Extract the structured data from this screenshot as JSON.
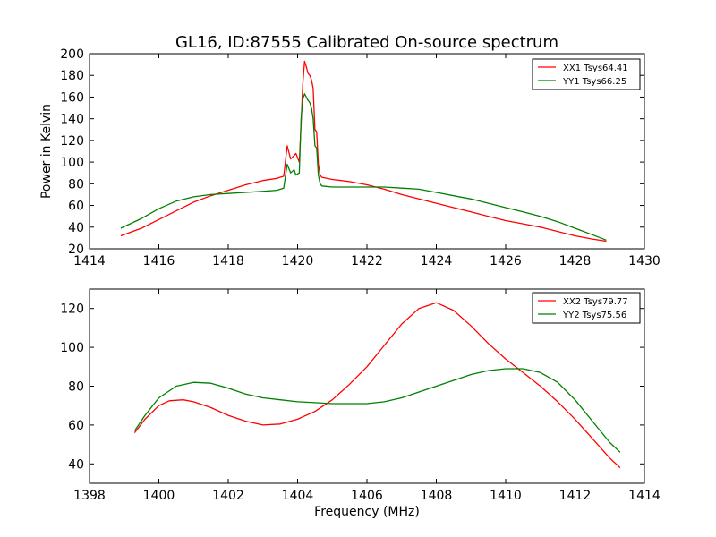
{
  "chart_data": [
    {
      "type": "line",
      "title": "GL16, ID:87555 Calibrated On-source spectrum",
      "xlabel": "",
      "ylabel": "Power in Kelvin",
      "xlim": [
        1414,
        1430
      ],
      "ylim": [
        20,
        200
      ],
      "xticks": [
        "1414",
        "1416",
        "1418",
        "1420",
        "1422",
        "1424",
        "1426",
        "1428",
        "1430"
      ],
      "yticks": [
        "20",
        "40",
        "60",
        "80",
        "100",
        "120",
        "140",
        "160",
        "180",
        "200"
      ],
      "grid": false,
      "legend": "top-right",
      "series": [
        {
          "name": "XX1 Tsys64.41",
          "color": "#ff0000",
          "x": [
            1414.9,
            1415.5,
            1416,
            1416.5,
            1417,
            1417.5,
            1418,
            1418.5,
            1419,
            1419.4,
            1419.6,
            1419.7,
            1419.8,
            1419.9,
            1419.95,
            1420.05,
            1420.1,
            1420.15,
            1420.2,
            1420.25,
            1420.3,
            1420.35,
            1420.4,
            1420.45,
            1420.5,
            1420.55,
            1420.6,
            1420.65,
            1420.7,
            1421,
            1421.5,
            1422,
            1422.5,
            1423,
            1423.5,
            1424,
            1424.5,
            1425,
            1425.5,
            1426,
            1426.5,
            1427,
            1427.5,
            1428,
            1428.5,
            1428.9
          ],
          "y": [
            32,
            39,
            47,
            55,
            63,
            69,
            74,
            79,
            83,
            85,
            87,
            115,
            103,
            106,
            108,
            100,
            135,
            172,
            193,
            188,
            182,
            180,
            176,
            168,
            130,
            128,
            98,
            88,
            86,
            84,
            82,
            79,
            75,
            70,
            66,
            62,
            58,
            54,
            50,
            46,
            43,
            40,
            36,
            32,
            29,
            27
          ]
        },
        {
          "name": "YY1 Tsys66.25",
          "color": "#008000",
          "x": [
            1414.9,
            1415.5,
            1416,
            1416.5,
            1417,
            1417.5,
            1418,
            1418.5,
            1419,
            1419.4,
            1419.6,
            1419.7,
            1419.8,
            1419.9,
            1419.95,
            1420.05,
            1420.1,
            1420.15,
            1420.2,
            1420.25,
            1420.3,
            1420.35,
            1420.4,
            1420.45,
            1420.5,
            1420.55,
            1420.6,
            1420.65,
            1420.7,
            1421,
            1421.5,
            1422,
            1422.5,
            1423,
            1423.5,
            1424,
            1424.5,
            1425,
            1425.5,
            1426,
            1426.5,
            1427,
            1427.5,
            1428,
            1428.5,
            1428.9
          ],
          "y": [
            39,
            48,
            57,
            64,
            68,
            70,
            71,
            72,
            73,
            74,
            76,
            98,
            90,
            93,
            88,
            90,
            140,
            158,
            163,
            160,
            157,
            155,
            150,
            140,
            115,
            113,
            88,
            80,
            78,
            77,
            77,
            77,
            77,
            76,
            75,
            72,
            69,
            66,
            62,
            58,
            54,
            50,
            45,
            39,
            33,
            28
          ]
        }
      ]
    },
    {
      "type": "line",
      "title": "",
      "xlabel": "Frequency (MHz)",
      "ylabel": "",
      "xlim": [
        1398,
        1414
      ],
      "ylim": [
        30,
        130
      ],
      "xticks": [
        "1398",
        "1400",
        "1402",
        "1404",
        "1406",
        "1408",
        "1410",
        "1412",
        "1414"
      ],
      "yticks": [
        "40",
        "60",
        "80",
        "100",
        "120"
      ],
      "grid": false,
      "legend": "top-right",
      "series": [
        {
          "name": "XX2 Tsys79.77",
          "color": "#ff0000",
          "x": [
            1399.3,
            1399.6,
            1400,
            1400.3,
            1400.7,
            1401,
            1401.5,
            1402,
            1402.5,
            1403,
            1403.5,
            1404,
            1404.5,
            1405,
            1405.5,
            1406,
            1406.5,
            1407,
            1407.5,
            1408,
            1408.5,
            1409,
            1409.5,
            1410,
            1410.5,
            1411,
            1411.5,
            1412,
            1412.5,
            1413,
            1413.3
          ],
          "y": [
            56,
            63,
            70,
            72.5,
            73,
            72,
            69,
            65,
            62,
            60,
            60.5,
            63,
            67,
            73,
            81,
            90,
            101,
            112,
            120,
            123,
            119,
            111,
            102,
            94,
            87,
            80,
            72,
            63,
            53,
            43,
            38
          ]
        },
        {
          "name": "YY2 Tsys75.56",
          "color": "#008000",
          "x": [
            1399.3,
            1399.6,
            1400,
            1400.5,
            1401,
            1401.5,
            1402,
            1402.5,
            1403,
            1403.5,
            1404,
            1404.5,
            1405,
            1405.5,
            1406,
            1406.5,
            1407,
            1407.5,
            1408,
            1408.5,
            1409,
            1409.5,
            1410,
            1410.5,
            1411,
            1411.5,
            1412,
            1412.5,
            1413,
            1413.3
          ],
          "y": [
            57,
            65,
            74,
            80,
            82,
            81.5,
            79,
            76,
            74,
            73,
            72,
            71.5,
            71,
            71,
            71,
            72,
            74,
            77,
            80,
            83,
            86,
            88,
            89,
            89,
            87,
            82,
            73,
            62,
            51,
            46
          ]
        }
      ]
    }
  ]
}
